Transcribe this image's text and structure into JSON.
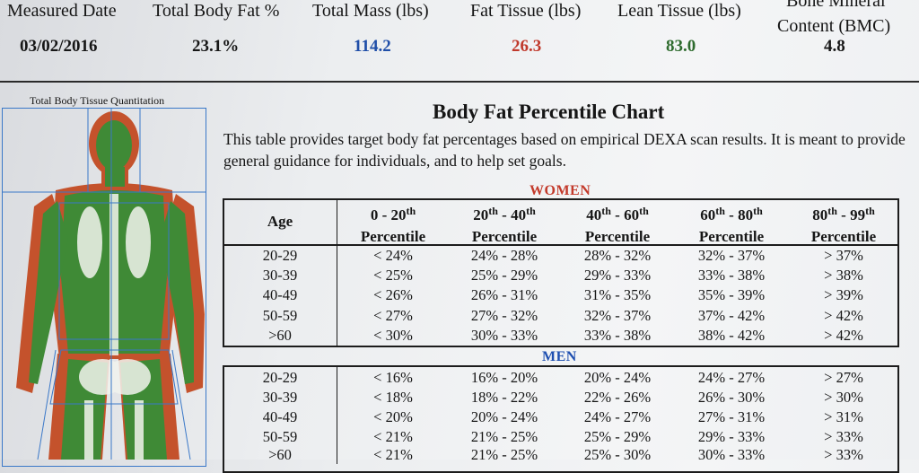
{
  "summary": {
    "measured_date": {
      "label": "Measured Date",
      "value": "03/02/2016"
    },
    "total_body_fat": {
      "label": "Total Body Fat %",
      "value": "23.1%"
    },
    "total_mass": {
      "label": "Total Mass (lbs)",
      "value": "114.2"
    },
    "fat_tissue": {
      "label": "Fat Tissue (lbs)",
      "value": "26.3"
    },
    "lean_tissue": {
      "label": "Lean Tissue (lbs)",
      "value": "83.0"
    },
    "bmc": {
      "label_line1": "Bone Mineral",
      "label_line2": "Content (BMC)",
      "value": "4.8"
    }
  },
  "colors": {
    "total_mass": "#1f4ea8",
    "fat_tissue": "#c0392b",
    "lean_tissue": "#2e6b2e",
    "fat_scan": "#c4522c",
    "lean_scan": "#3f8a36"
  },
  "scan": {
    "title": "Total Body Tissue Quantitation"
  },
  "chart": {
    "title": "Body Fat Percentile Chart",
    "intro": "This table provides target body fat percentages based on empirical DEXA scan results.  It is meant to provide general guidance for individuals, and to help set goals.",
    "headers": {
      "age": "Age",
      "percentile_word": "Percentile",
      "c1": {
        "a": "0 - 20",
        "a_sup": "th",
        "mid": "",
        "b": "",
        "b_sup": ""
      },
      "c2": {
        "a": "20",
        "a_sup": "th",
        "mid": " - ",
        "b": "40",
        "b_sup": "th"
      },
      "c3": {
        "a": "40",
        "a_sup": "th",
        "mid": " - ",
        "b": "60",
        "b_sup": "th"
      },
      "c4": {
        "a": "60",
        "a_sup": "th",
        "mid": " - ",
        "b": "80",
        "b_sup": "th"
      },
      "c5": {
        "a": "80",
        "a_sup": "th",
        "mid": " - ",
        "b": "99",
        "b_sup": "th"
      }
    },
    "women": {
      "label": "WOMEN",
      "rows": [
        [
          "20-29",
          "< 24%",
          "24% - 28%",
          "28% - 32%",
          "32% - 37%",
          "> 37%"
        ],
        [
          "30-39",
          "< 25%",
          "25% - 29%",
          "29% - 33%",
          "33% - 38%",
          "> 38%"
        ],
        [
          "40-49",
          "< 26%",
          "26% - 31%",
          "31% - 35%",
          "35% - 39%",
          "> 39%"
        ],
        [
          "50-59",
          "< 27%",
          "27% - 32%",
          "32% - 37%",
          "37% - 42%",
          "> 42%"
        ],
        [
          ">60",
          "< 30%",
          "30% - 33%",
          "33% - 38%",
          "38% - 42%",
          "> 42%"
        ]
      ]
    },
    "men": {
      "label": "MEN",
      "rows": [
        [
          "20-29",
          "< 16%",
          "16% - 20%",
          "20% - 24%",
          "24% - 27%",
          "> 27%"
        ],
        [
          "30-39",
          "< 18%",
          "18% - 22%",
          "22% - 26%",
          "26% - 30%",
          "> 30%"
        ],
        [
          "40-49",
          "< 20%",
          "20% - 24%",
          "24% - 27%",
          "27% - 31%",
          "> 31%"
        ],
        [
          "50-59",
          "< 21%",
          "21% - 25%",
          "25% - 29%",
          "29% - 33%",
          "> 33%"
        ],
        [
          ">60",
          "< 21%",
          "21% - 25%",
          "25% - 30%",
          "30% - 33%",
          "> 33%"
        ]
      ]
    }
  }
}
